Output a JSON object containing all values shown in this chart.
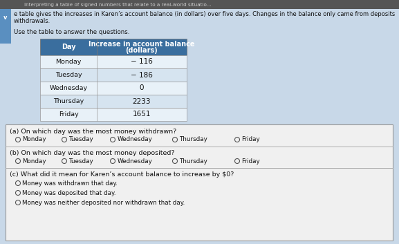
{
  "title_top": "Interpreting a table of signed numbers that relate to a real-world situatio...",
  "intro_text": "e table gives the increases in Karen’s account balance (in dollars) over five days. Changes in the balance only came from deposits",
  "intro_text2": "withdrawals.",
  "instruction": "Use the table to answer the questions.",
  "table_header": [
    "Day",
    "Increase in account balance\n(dollars)"
  ],
  "table_rows": [
    [
      "Monday",
      "− 116"
    ],
    [
      "Tuesday",
      "− 186"
    ],
    [
      "Wednesday",
      "0"
    ],
    [
      "Thursday",
      "2233"
    ],
    [
      "Friday",
      "1651"
    ]
  ],
  "header_bg": "#3a6e9e",
  "header_fg": "#ffffff",
  "row_bg_light": "#d6e4f0",
  "row_bg_white": "#e8f1f8",
  "qa": [
    {
      "label": "(a) On which day was the most money withdrawn?",
      "options": [
        "Monday",
        "Tuesday",
        "Wednesday",
        "Thursday",
        "Friday"
      ]
    },
    {
      "label": "(b) On which day was the most money deposited?",
      "options": [
        "Monday",
        "Tuesday",
        "Wednesday",
        "Thursday",
        "Friday"
      ]
    },
    {
      "label": "(c) What did it mean for Karen’s account balance to increase by $0?",
      "options": [
        "Money was withdrawn that day.",
        "Money was deposited that day.",
        "Money was neither deposited nor withdrawn that day."
      ]
    }
  ],
  "title_bar_bg": "#555555",
  "title_bar_fg": "#cccccc",
  "check_bg": "#5a8fc0",
  "page_bg": "#c8d8e8",
  "qbox_bg": "#f0f0f0",
  "qbox_border": "#999999"
}
